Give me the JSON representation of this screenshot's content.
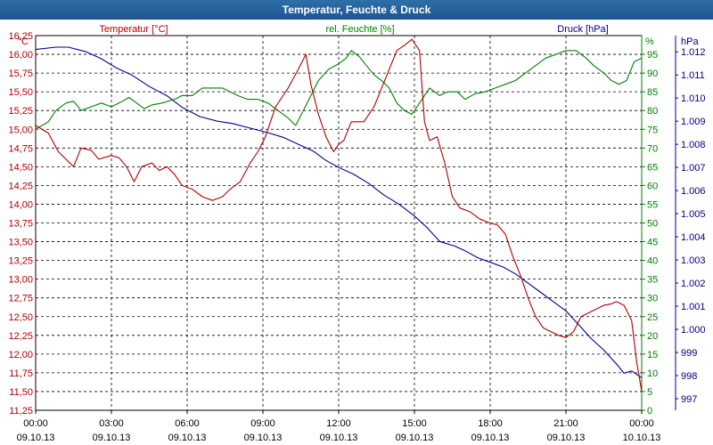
{
  "window": {
    "title": "Temperatur, Feuchte & Druck"
  },
  "colors": {
    "temperature": "#b00000",
    "humidity": "#008000",
    "pressure": "#000090",
    "titlebar": "#1d5590"
  },
  "chart_data": {
    "type": "line",
    "title": "Temperatur, Feuchte & Druck",
    "x_range_hours": [
      0,
      24
    ],
    "grid": true,
    "axes": {
      "temperature": {
        "label": "Temperatur [°C]",
        "unit": "°C",
        "range": [
          11.25,
          16.25
        ],
        "ticks": [
          "11,25",
          "11,50",
          "11,75",
          "12,00",
          "12,25",
          "12,50",
          "12,75",
          "13,00",
          "13,25",
          "13,50",
          "13,75",
          "14,00",
          "14,25",
          "14,50",
          "14,75",
          "15,00",
          "15,25",
          "15,50",
          "15,75",
          "16,00",
          "16,25"
        ]
      },
      "humidity": {
        "label": "rel. Feuchte [%]",
        "unit": "%",
        "range": [
          0,
          100
        ],
        "ticks": [
          "0",
          "5",
          "10",
          "15",
          "20",
          "25",
          "30",
          "35",
          "40",
          "45",
          "50",
          "55",
          "60",
          "65",
          "70",
          "75",
          "80",
          "85",
          "90",
          "95"
        ]
      },
      "pressure": {
        "label": "Druck [hPa]",
        "unit": "hPa",
        "range": [
          996.5,
          1012.7
        ],
        "ticks": [
          "997",
          "998",
          "999",
          "1.000",
          "1.001",
          "1.002",
          "1.003",
          "1.004",
          "1.005",
          "1.006",
          "1.007",
          "1.008",
          "1.009",
          "1.010",
          "1.011",
          "1.012"
        ]
      }
    },
    "x_ticks": [
      {
        "time": "00:00",
        "date": "09.10.13"
      },
      {
        "time": "03:00",
        "date": "09.10.13"
      },
      {
        "time": "06:00",
        "date": "09.10.13"
      },
      {
        "time": "09:00",
        "date": "09.10.13"
      },
      {
        "time": "12:00",
        "date": "09.10.13"
      },
      {
        "time": "15:00",
        "date": "09.10.13"
      },
      {
        "time": "18:00",
        "date": "09.10.13"
      },
      {
        "time": "21:00",
        "date": "09.10.13"
      },
      {
        "time": "00:00",
        "date": "10.10.13"
      }
    ],
    "series": [
      {
        "name": "Temperatur",
        "axis": "temperature",
        "points": [
          [
            0,
            15.05
          ],
          [
            0.5,
            14.95
          ],
          [
            0.9,
            14.7
          ],
          [
            1.2,
            14.6
          ],
          [
            1.5,
            14.5
          ],
          [
            1.8,
            14.75
          ],
          [
            2.2,
            14.72
          ],
          [
            2.5,
            14.6
          ],
          [
            3.0,
            14.65
          ],
          [
            3.3,
            14.62
          ],
          [
            3.6,
            14.5
          ],
          [
            3.9,
            14.3
          ],
          [
            4.2,
            14.5
          ],
          [
            4.6,
            14.55
          ],
          [
            4.9,
            14.45
          ],
          [
            5.2,
            14.5
          ],
          [
            5.5,
            14.4
          ],
          [
            5.8,
            14.25
          ],
          [
            6.2,
            14.2
          ],
          [
            6.6,
            14.1
          ],
          [
            7.0,
            14.05
          ],
          [
            7.4,
            14.1
          ],
          [
            7.7,
            14.2
          ],
          [
            8.1,
            14.3
          ],
          [
            8.5,
            14.55
          ],
          [
            8.8,
            14.7
          ],
          [
            9.1,
            14.9
          ],
          [
            9.5,
            15.3
          ],
          [
            10.0,
            15.55
          ],
          [
            10.4,
            15.8
          ],
          [
            10.7,
            16.0
          ],
          [
            10.9,
            15.6
          ],
          [
            11.2,
            15.2
          ],
          [
            11.5,
            14.9
          ],
          [
            11.8,
            14.7
          ],
          [
            12.0,
            14.8
          ],
          [
            12.2,
            14.85
          ],
          [
            12.5,
            15.1
          ],
          [
            13.0,
            15.1
          ],
          [
            13.4,
            15.3
          ],
          [
            13.7,
            15.55
          ],
          [
            14.0,
            15.8
          ],
          [
            14.3,
            16.05
          ],
          [
            14.6,
            16.12
          ],
          [
            14.9,
            16.2
          ],
          [
            15.2,
            16.05
          ],
          [
            15.4,
            15.1
          ],
          [
            15.6,
            14.85
          ],
          [
            15.9,
            14.9
          ],
          [
            16.2,
            14.55
          ],
          [
            16.5,
            14.1
          ],
          [
            16.8,
            13.95
          ],
          [
            17.2,
            13.9
          ],
          [
            17.6,
            13.8
          ],
          [
            18.0,
            13.75
          ],
          [
            18.3,
            13.72
          ],
          [
            18.6,
            13.6
          ],
          [
            18.9,
            13.3
          ],
          [
            19.2,
            13.05
          ],
          [
            19.5,
            12.75
          ],
          [
            19.8,
            12.5
          ],
          [
            20.1,
            12.35
          ],
          [
            20.4,
            12.3
          ],
          [
            20.7,
            12.25
          ],
          [
            21.0,
            12.22
          ],
          [
            21.3,
            12.3
          ],
          [
            21.6,
            12.5
          ],
          [
            21.9,
            12.55
          ],
          [
            22.2,
            12.6
          ],
          [
            22.5,
            12.65
          ],
          [
            22.8,
            12.67
          ],
          [
            23.0,
            12.7
          ],
          [
            23.3,
            12.65
          ],
          [
            23.6,
            12.45
          ],
          [
            23.8,
            11.9
          ],
          [
            24.0,
            11.5
          ]
        ]
      },
      {
        "name": "rel. Feuchte",
        "axis": "humidity",
        "points": [
          [
            0,
            75
          ],
          [
            0.5,
            77
          ],
          [
            0.8,
            80
          ],
          [
            1.2,
            82
          ],
          [
            1.5,
            82.5
          ],
          [
            1.8,
            80
          ],
          [
            2.2,
            81
          ],
          [
            2.6,
            82
          ],
          [
            3.0,
            81
          ],
          [
            3.3,
            82
          ],
          [
            3.7,
            83.5
          ],
          [
            4.0,
            82
          ],
          [
            4.3,
            80.5
          ],
          [
            4.6,
            81.5
          ],
          [
            5.0,
            82
          ],
          [
            5.5,
            83
          ],
          [
            5.8,
            84
          ],
          [
            6.2,
            84
          ],
          [
            6.6,
            86
          ],
          [
            7.0,
            86
          ],
          [
            7.4,
            86
          ],
          [
            7.7,
            85
          ],
          [
            8.0,
            84
          ],
          [
            8.4,
            83
          ],
          [
            8.8,
            83
          ],
          [
            9.2,
            82
          ],
          [
            9.6,
            80
          ],
          [
            10.0,
            78
          ],
          [
            10.3,
            76
          ],
          [
            10.6,
            80
          ],
          [
            10.9,
            84
          ],
          [
            11.2,
            88
          ],
          [
            11.6,
            91
          ],
          [
            12.0,
            92.5
          ],
          [
            12.3,
            94
          ],
          [
            12.5,
            96
          ],
          [
            12.8,
            94.5
          ],
          [
            13.1,
            92
          ],
          [
            13.4,
            89.5
          ],
          [
            13.7,
            88
          ],
          [
            14.0,
            86
          ],
          [
            14.3,
            82
          ],
          [
            14.6,
            80
          ],
          [
            14.9,
            79
          ],
          [
            15.2,
            82
          ],
          [
            15.6,
            86
          ],
          [
            16.0,
            84
          ],
          [
            16.3,
            85
          ],
          [
            16.7,
            85
          ],
          [
            17.0,
            83
          ],
          [
            17.4,
            84.5
          ],
          [
            17.8,
            85
          ],
          [
            18.2,
            86
          ],
          [
            18.6,
            87
          ],
          [
            19.0,
            88
          ],
          [
            19.4,
            90
          ],
          [
            19.8,
            92
          ],
          [
            20.2,
            94
          ],
          [
            20.6,
            95
          ],
          [
            21.0,
            96
          ],
          [
            21.4,
            96
          ],
          [
            21.8,
            94
          ],
          [
            22.1,
            92
          ],
          [
            22.5,
            90
          ],
          [
            22.8,
            88
          ],
          [
            23.1,
            87
          ],
          [
            23.4,
            88
          ],
          [
            23.7,
            93
          ],
          [
            24.0,
            94
          ]
        ]
      },
      {
        "name": "Druck",
        "axis": "pressure",
        "points": [
          [
            0,
            1012.1
          ],
          [
            0.8,
            1012.2
          ],
          [
            1.3,
            1012.2
          ],
          [
            2.0,
            1012.0
          ],
          [
            2.6,
            1011.7
          ],
          [
            3.2,
            1011.3
          ],
          [
            3.8,
            1011.0
          ],
          [
            4.5,
            1010.5
          ],
          [
            5.2,
            1010.1
          ],
          [
            5.8,
            1009.6
          ],
          [
            6.5,
            1009.2
          ],
          [
            7.2,
            1009.0
          ],
          [
            7.8,
            1008.9
          ],
          [
            8.5,
            1008.7
          ],
          [
            9.2,
            1008.5
          ],
          [
            9.8,
            1008.3
          ],
          [
            10.4,
            1008.0
          ],
          [
            11.0,
            1007.7
          ],
          [
            11.5,
            1007.3
          ],
          [
            12.0,
            1007.0
          ],
          [
            12.6,
            1006.7
          ],
          [
            13.2,
            1006.3
          ],
          [
            13.8,
            1005.8
          ],
          [
            14.4,
            1005.4
          ],
          [
            15.0,
            1004.9
          ],
          [
            15.5,
            1004.4
          ],
          [
            16.0,
            1003.8
          ],
          [
            16.6,
            1003.6
          ],
          [
            17.0,
            1003.4
          ],
          [
            17.5,
            1003.1
          ],
          [
            18.0,
            1002.9
          ],
          [
            18.5,
            1002.7
          ],
          [
            19.0,
            1002.4
          ],
          [
            19.5,
            1002.0
          ],
          [
            20.0,
            1001.6
          ],
          [
            20.5,
            1001.2
          ],
          [
            21.0,
            1000.8
          ],
          [
            21.5,
            1000.2
          ],
          [
            22.0,
            999.6
          ],
          [
            22.5,
            999.1
          ],
          [
            23.0,
            998.5
          ],
          [
            23.3,
            998.1
          ],
          [
            23.6,
            998.2
          ],
          [
            24.0,
            997.9
          ]
        ]
      }
    ]
  }
}
